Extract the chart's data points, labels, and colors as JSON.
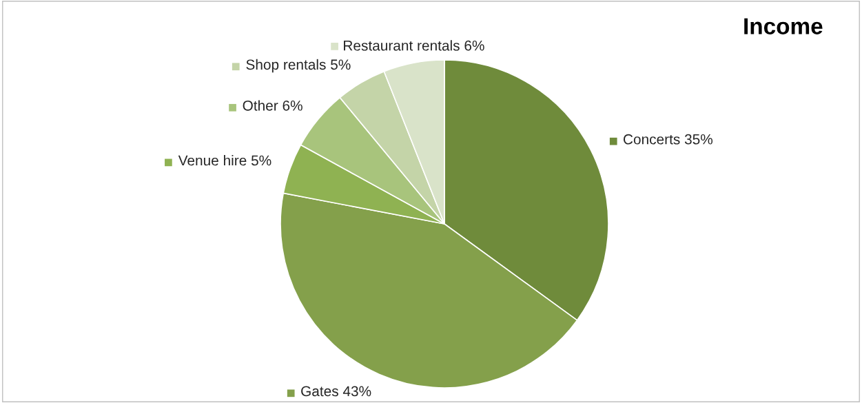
{
  "chart_data": {
    "type": "pie",
    "title": "Income",
    "categories": [
      "Concerts",
      "Gates",
      "Venue hire",
      "Other",
      "Shop rentals",
      "Restaurant rentals"
    ],
    "values": [
      35,
      43,
      5,
      6,
      5,
      6
    ],
    "value_labels": [
      "35%",
      "43%",
      "5%",
      "6%",
      "5%",
      "6%"
    ],
    "colors": [
      "#6f8b3b",
      "#84a04b",
      "#8fb252",
      "#a8c47c",
      "#c4d4a8",
      "#d9e3c9"
    ],
    "legend": "left"
  }
}
